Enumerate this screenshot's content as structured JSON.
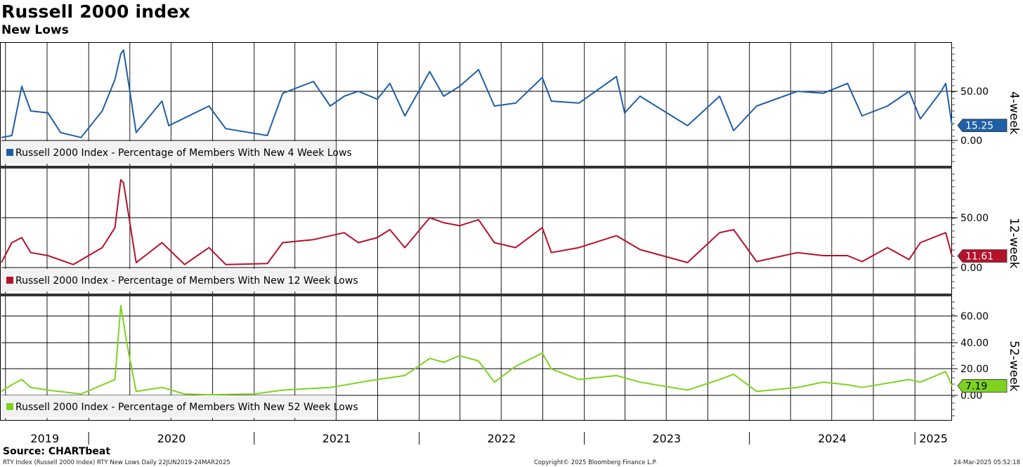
{
  "title": "Russell 2000 index",
  "subtitle": "New Lows",
  "source": "Source: CHARTbeat",
  "footer": {
    "left": "RTY Index (Russell 2000 Index) RTY New Lows  Daily 22JUN2019-24MAR2025",
    "center": "Copyright© 2025 Bloomberg Finance L.P.",
    "right": "24-Mar-2025 05:52:18"
  },
  "chart_data": {
    "type": "line",
    "x_range": [
      "2019-06-22",
      "2025-03-24"
    ],
    "x_tick_labels": [
      "2019",
      "2020",
      "2021",
      "2022",
      "2023",
      "2024",
      "2025"
    ],
    "panels": [
      {
        "panel_label": "4-week",
        "legend": "Russell 2000 Index - Percentage of Members With New 4 Week Lows",
        "color": "#1f5fa6",
        "last_value_label": "15.25",
        "y_tick_labels": [
          "50.00",
          "0.00"
        ],
        "ylim": [
          0,
          100
        ],
        "series": {
          "dates": [
            "2019-06-22",
            "2019-07-15",
            "2019-08-06",
            "2019-08-26",
            "2019-10-03",
            "2019-10-31",
            "2019-12-15",
            "2020-01-31",
            "2020-02-28",
            "2020-03-12",
            "2020-03-18",
            "2020-04-15",
            "2020-06-11",
            "2020-06-26",
            "2020-09-23",
            "2020-10-30",
            "2021-01-30",
            "2021-03-05",
            "2021-05-12",
            "2021-06-18",
            "2021-07-19",
            "2021-08-19",
            "2021-09-30",
            "2021-10-28",
            "2021-11-30",
            "2022-01-24",
            "2022-02-24",
            "2022-03-31",
            "2022-05-12",
            "2022-06-16",
            "2022-08-02",
            "2022-09-30",
            "2022-10-20",
            "2022-12-20",
            "2023-03-13",
            "2023-03-31",
            "2023-05-04",
            "2023-08-17",
            "2023-10-27",
            "2023-11-27",
            "2024-01-17",
            "2024-04-16",
            "2024-06-12",
            "2024-08-05",
            "2024-09-06",
            "2024-11-01",
            "2024-12-19",
            "2025-01-13",
            "2025-02-28",
            "2025-03-10",
            "2025-03-24"
          ],
          "values": [
            3,
            5,
            55,
            30,
            28,
            8,
            3,
            30,
            62,
            88,
            92,
            8,
            40,
            15,
            35,
            12,
            5,
            48,
            60,
            35,
            45,
            50,
            42,
            58,
            25,
            70,
            45,
            55,
            72,
            35,
            38,
            64,
            40,
            38,
            65,
            28,
            45,
            15,
            45,
            10,
            35,
            50,
            48,
            58,
            25,
            35,
            50,
            22,
            50,
            58,
            15.25
          ]
        }
      },
      {
        "panel_label": "12-week",
        "legend": "Russell 2000 Index - Percentage of Members With New 12 Week Lows",
        "color": "#b5122a",
        "last_value_label": "11.61",
        "y_tick_labels": [
          "50.00",
          "0.00"
        ],
        "ylim": [
          0,
          100
        ],
        "series": {
          "dates": [
            "2019-06-22",
            "2019-07-15",
            "2019-08-06",
            "2019-08-26",
            "2019-10-03",
            "2019-11-28",
            "2020-01-31",
            "2020-02-28",
            "2020-03-12",
            "2020-03-18",
            "2020-04-15",
            "2020-06-11",
            "2020-07-31",
            "2020-09-23",
            "2020-10-30",
            "2021-01-30",
            "2021-03-05",
            "2021-05-12",
            "2021-07-19",
            "2021-08-19",
            "2021-09-30",
            "2021-10-28",
            "2021-11-30",
            "2022-01-24",
            "2022-02-24",
            "2022-03-31",
            "2022-05-12",
            "2022-06-16",
            "2022-08-02",
            "2022-09-30",
            "2022-10-20",
            "2022-12-20",
            "2023-03-13",
            "2023-05-04",
            "2023-08-17",
            "2023-10-27",
            "2023-11-27",
            "2024-01-17",
            "2024-04-16",
            "2024-06-12",
            "2024-08-05",
            "2024-09-06",
            "2024-11-01",
            "2024-12-19",
            "2025-01-13",
            "2025-03-10",
            "2025-03-24"
          ],
          "values": [
            5,
            25,
            30,
            15,
            12,
            3,
            20,
            40,
            88,
            85,
            5,
            25,
            3,
            20,
            3,
            4,
            25,
            28,
            35,
            25,
            30,
            38,
            20,
            50,
            45,
            42,
            48,
            25,
            20,
            40,
            15,
            20,
            32,
            18,
            5,
            35,
            38,
            6,
            15,
            12,
            12,
            6,
            20,
            8,
            25,
            35,
            11.61
          ]
        }
      },
      {
        "panel_label": "52-week",
        "legend": "Russell 2000 Index - Percentage of Members With New 52 Week Lows",
        "color": "#7ed321",
        "last_value_label": "7.19",
        "y_tick_labels": [
          "60.00",
          "40.00",
          "20.00",
          "0.00"
        ],
        "ylim": [
          -10,
          75
        ],
        "series": {
          "dates": [
            "2019-06-22",
            "2019-07-15",
            "2019-08-06",
            "2019-08-26",
            "2019-10-03",
            "2019-12-15",
            "2020-02-28",
            "2020-03-12",
            "2020-03-18",
            "2020-03-25",
            "2020-04-15",
            "2020-06-11",
            "2020-07-31",
            "2020-09-23",
            "2020-12-31",
            "2021-03-05",
            "2021-06-18",
            "2021-09-30",
            "2021-11-30",
            "2022-01-24",
            "2022-02-24",
            "2022-03-31",
            "2022-05-12",
            "2022-06-16",
            "2022-08-02",
            "2022-09-30",
            "2022-10-20",
            "2022-12-20",
            "2023-03-13",
            "2023-05-04",
            "2023-08-17",
            "2023-10-27",
            "2023-11-27",
            "2024-01-17",
            "2024-04-16",
            "2024-06-12",
            "2024-08-05",
            "2024-09-06",
            "2024-12-19",
            "2025-01-13",
            "2025-03-10",
            "2025-03-24"
          ],
          "values": [
            3,
            8,
            12,
            6,
            4,
            1,
            12,
            68,
            55,
            40,
            3,
            6,
            1,
            0.5,
            1,
            4,
            6,
            12,
            15,
            28,
            25,
            30,
            26,
            10,
            22,
            32,
            20,
            12,
            15,
            10,
            4,
            12,
            16,
            3,
            6,
            10,
            8,
            6,
            12,
            10,
            18,
            7.19
          ]
        }
      }
    ]
  }
}
